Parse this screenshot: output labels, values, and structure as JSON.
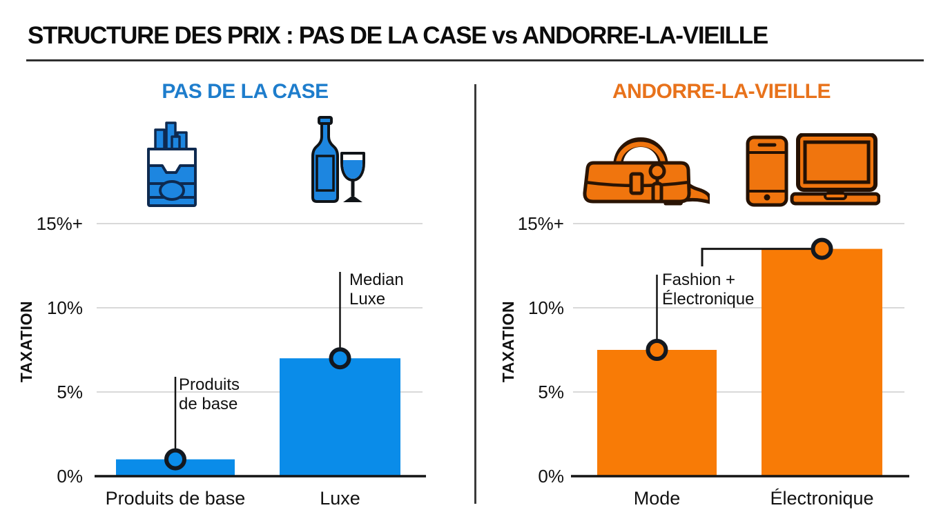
{
  "header": {
    "title": "STRUCTURE DES PRIX : PAS DE LA CASE vs ANDORRE-LA-VIEILLE"
  },
  "axis": {
    "label": "TAXATION",
    "ticks": [
      "15%+",
      "10%",
      "5%",
      "0%"
    ],
    "tick_values": [
      15,
      10,
      5,
      0
    ]
  },
  "panels": [
    {
      "id": "pas-de-la-case",
      "title": "PAS DE LA CASE",
      "accent": "#1e7dcc",
      "icon_color": "#1d86e0",
      "icon_stroke": "#0e2a50",
      "icons": [
        "cigarette-pack-icon",
        "wine-bottle-and-glass-icon"
      ]
    },
    {
      "id": "andorre-la-vieille",
      "title": "ANDORRE-LA-VIEILLE",
      "accent": "#e8721b",
      "icon_color": "#f0750e",
      "icon_stroke": "#2a1404",
      "icons": [
        "handbag-and-heel-icon",
        "phone-and-laptop-icon"
      ]
    }
  ],
  "chart_data": [
    {
      "type": "bar",
      "title": "PAS DE LA CASE",
      "categories": [
        "Produits de base",
        "Luxe"
      ],
      "values": [
        1,
        7
      ],
      "bar_color": "#0a8ce9",
      "xlabel": "",
      "ylabel": "TAXATION",
      "yticks": [
        "0%",
        "5%",
        "10%",
        "15%+"
      ],
      "ylim": [
        0,
        16
      ],
      "grid": true,
      "legend": false,
      "annotations": [
        [
          "Produits",
          "de base"
        ],
        [
          "Median",
          "Luxe"
        ]
      ]
    },
    {
      "type": "bar",
      "title": "ANDORRE-LA-VIEILLE",
      "categories": [
        "Mode",
        "Électronique"
      ],
      "values": [
        7.5,
        13.5
      ],
      "bar_color": "#f87b06",
      "xlabel": "",
      "ylabel": "TAXATION",
      "yticks": [
        "0%",
        "5%",
        "10%",
        "15%+"
      ],
      "ylim": [
        0,
        16
      ],
      "grid": true,
      "legend": false,
      "annotations": [
        [
          "Fashion +",
          "Électronique"
        ],
        null
      ]
    }
  ]
}
